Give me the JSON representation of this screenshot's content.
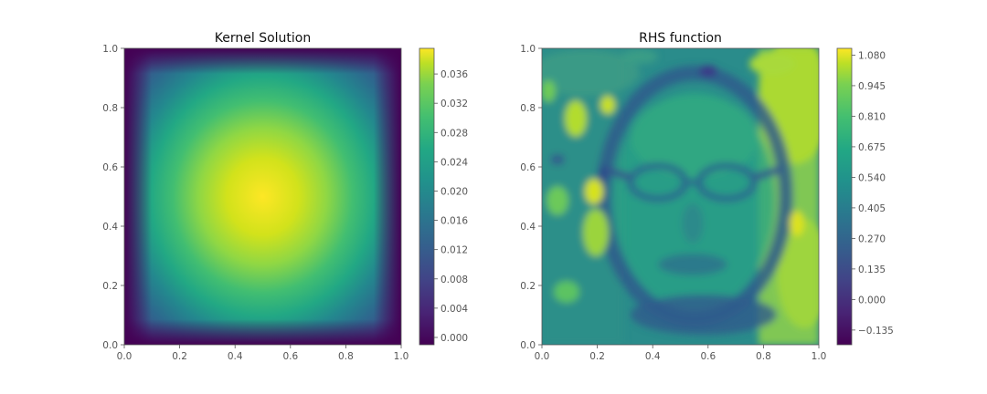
{
  "colors": {
    "viridis": [
      "#440154",
      "#482777",
      "#3f4a8a",
      "#31678e",
      "#26838f",
      "#1f9d8a",
      "#6cce5a",
      "#b6de2b",
      "#fee825"
    ],
    "axis": "#555555",
    "title": "#111111"
  },
  "chart_data": [
    {
      "type": "heatmap",
      "title": "Kernel Solution",
      "xlabel": "",
      "ylabel": "",
      "xlim": [
        0.0,
        1.0
      ],
      "ylim": [
        0.0,
        1.0
      ],
      "x_ticks": [
        "0.0",
        "0.2",
        "0.4",
        "0.6",
        "0.8",
        "1.0"
      ],
      "y_ticks": [
        "0.0",
        "0.2",
        "0.4",
        "0.6",
        "0.8",
        "1.0"
      ],
      "colorbar_range": [
        -0.001,
        0.0395
      ],
      "colorbar_ticks": [
        "0.000",
        "0.004",
        "0.008",
        "0.012",
        "0.016",
        "0.020",
        "0.024",
        "0.028",
        "0.032",
        "0.036"
      ],
      "field": {
        "description": "smooth bump, zero at boundary, maximum near center",
        "peak_value": 0.0385,
        "peak_location": [
          0.5,
          0.5
        ]
      },
      "grid": false
    },
    {
      "type": "heatmap",
      "title": "RHS function",
      "xlabel": "",
      "ylabel": "",
      "xlim": [
        0.0,
        1.0
      ],
      "ylim": [
        0.0,
        1.0
      ],
      "x_ticks": [
        "0.0",
        "0.2",
        "0.4",
        "0.6",
        "0.8",
        "1.0"
      ],
      "y_ticks": [
        "0.0",
        "0.2",
        "0.4",
        "0.6",
        "0.8",
        "1.0"
      ],
      "colorbar_range": [
        -0.2,
        1.11
      ],
      "colorbar_ticks": [
        "−0.135",
        "0.000",
        "0.135",
        "0.270",
        "0.405",
        "0.540",
        "0.675",
        "0.810",
        "0.945",
        "1.080"
      ],
      "field": {
        "description": "blurred portrait image of a face with glasses",
        "typical_value": 0.55,
        "min_value": -0.135,
        "max_value": 1.1
      },
      "grid": false
    }
  ]
}
